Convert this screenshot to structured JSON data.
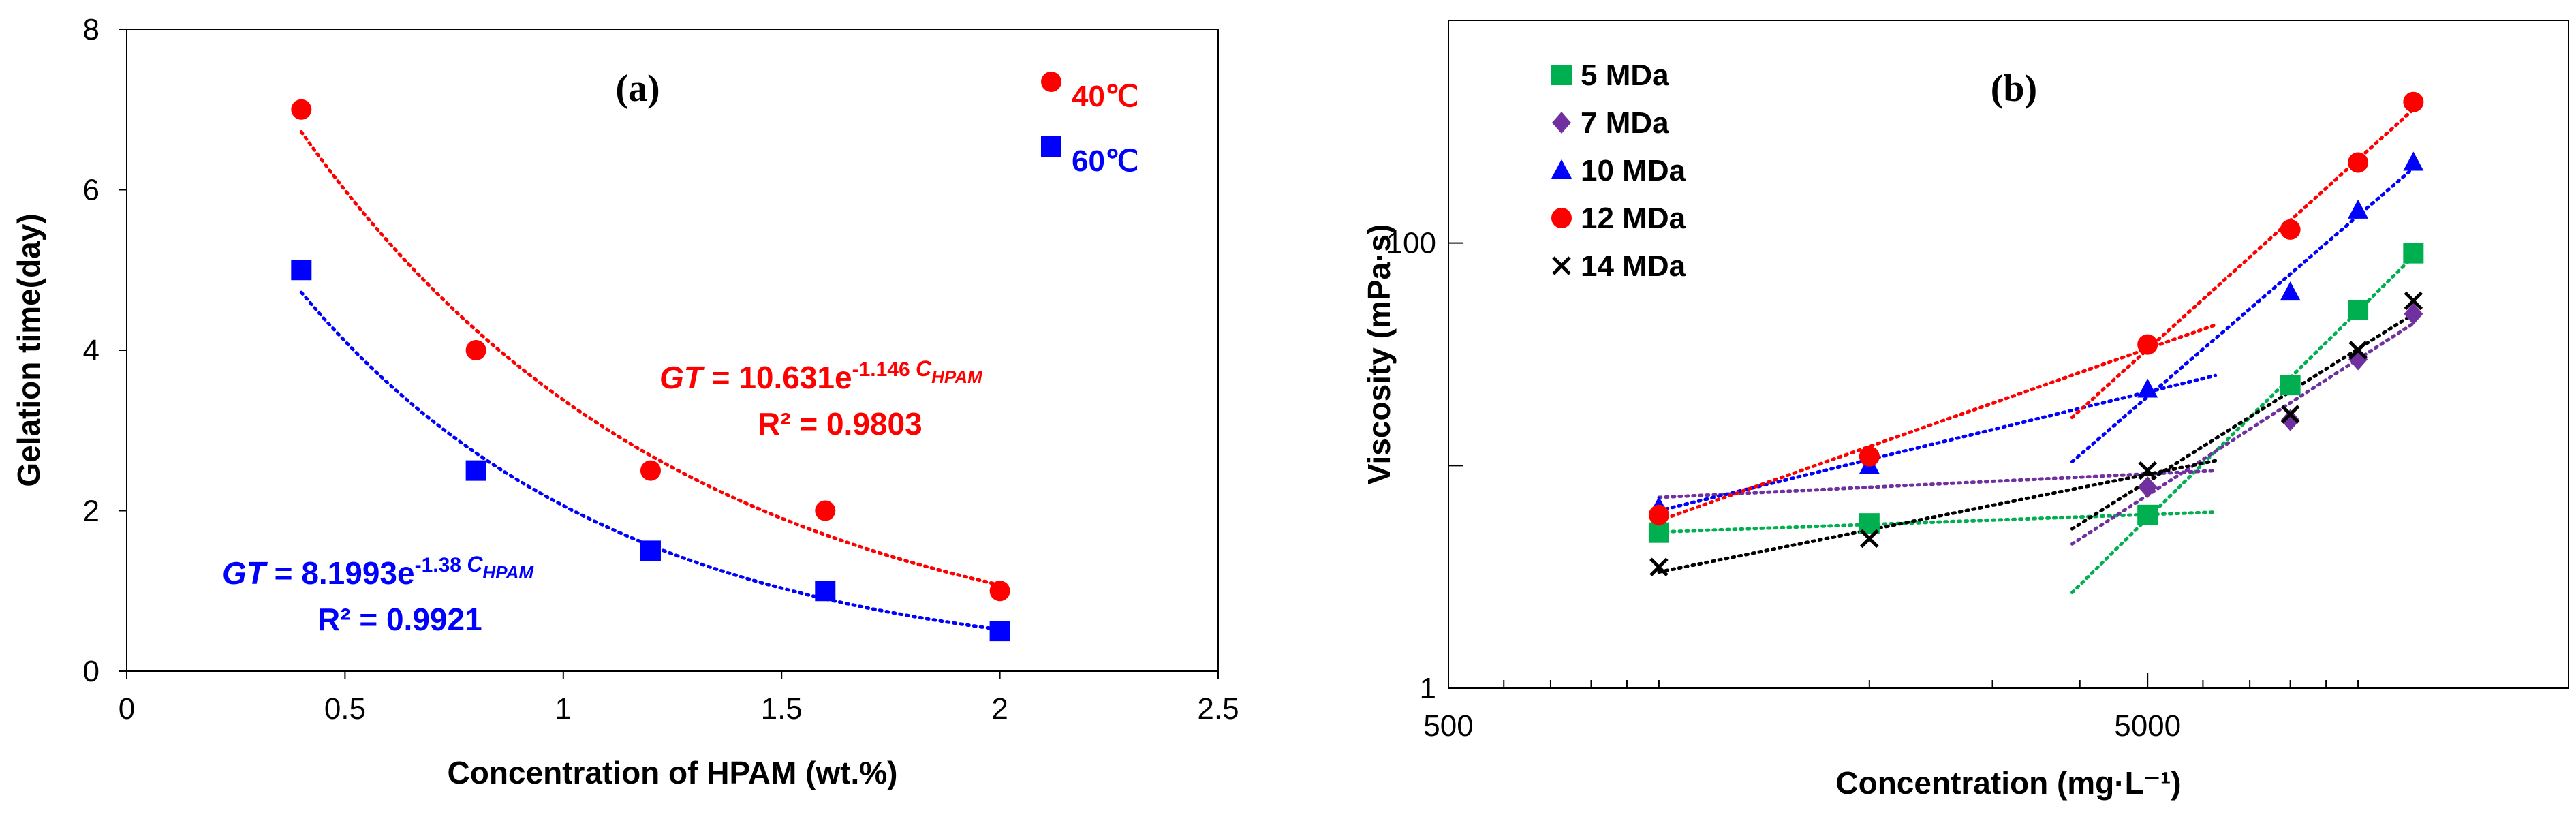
{
  "chart_data": [
    {
      "type": "scatter",
      "panel": "(a)",
      "xlabel": "Concentration of HPAM  (wt.%)",
      "ylabel": "Gelation time(day)",
      "xlim": [
        0,
        2.5
      ],
      "ylim": [
        0,
        8
      ],
      "xticks": [
        "0",
        "0.5",
        "1",
        "1.5",
        "2",
        "2.5"
      ],
      "yticks": [
        "0",
        "2",
        "4",
        "6",
        "8"
      ],
      "series": [
        {
          "name": "40℃",
          "color": "#ff0000",
          "marker": "circle",
          "x": [
            0.4,
            0.8,
            1.2,
            1.6,
            2.0
          ],
          "values": [
            7.0,
            4.0,
            2.5,
            2.0,
            1.0
          ],
          "fit": {
            "a": 10.631,
            "b": -1.146
          },
          "eq_prefix": "GT",
          "eq_body": " = 10.631e",
          "eq_exp": "-1.146 ",
          "eq_exp_var": "C",
          "eq_exp_sub": "HPAM",
          "r2": "R² = 0.9803"
        },
        {
          "name": "60℃",
          "color": "#0000ff",
          "marker": "square",
          "x": [
            0.4,
            0.8,
            1.2,
            1.6,
            2.0
          ],
          "values": [
            5.0,
            2.5,
            1.5,
            1.0,
            0.5
          ],
          "fit": {
            "a": 8.1993,
            "b": -1.38
          },
          "eq_prefix": "GT",
          "eq_body": "  = 8.1993e",
          "eq_exp": "-1.38 ",
          "eq_exp_var": "C",
          "eq_exp_sub": "HPAM",
          "r2": "R² = 0.9921"
        }
      ]
    },
    {
      "type": "scatter",
      "panel": "(b)",
      "xlabel": "Concentration (mg·L⁻¹)",
      "ylabel": "Viscosity (mPa·s)",
      "xscale": "log",
      "yscale": "log",
      "xlim": [
        500,
        20000
      ],
      "ylim": [
        1,
        1000
      ],
      "xticks": [
        "500",
        "5000"
      ],
      "yticks": [
        "1",
        "100"
      ],
      "x": [
        1000,
        2000,
        5000,
        8000,
        10000,
        12000
      ],
      "series": [
        {
          "name": "5 MDa",
          "color": "#00b050",
          "marker": "square",
          "values": [
            5.0,
            5.5,
            6.0,
            23,
            50,
            90
          ]
        },
        {
          "name": "7 MDa",
          "color": "#7030a0",
          "marker": "diamond",
          "values": [
            6.0,
            11,
            8.0,
            16,
            30,
            48
          ]
        },
        {
          "name": "10 MDa",
          "color": "#0000ff",
          "marker": "triangle",
          "values": [
            6.5,
            10,
            22,
            60,
            140,
            230
          ]
        },
        {
          "name": "12 MDa",
          "color": "#ff0000",
          "marker": "circle",
          "values": [
            6.0,
            11,
            35,
            115,
            230,
            430
          ]
        },
        {
          "name": "14 MDa",
          "color": "#000000",
          "marker": "x",
          "values": [
            3.5,
            4.7,
            9.5,
            17,
            33,
            55
          ]
        }
      ]
    }
  ]
}
